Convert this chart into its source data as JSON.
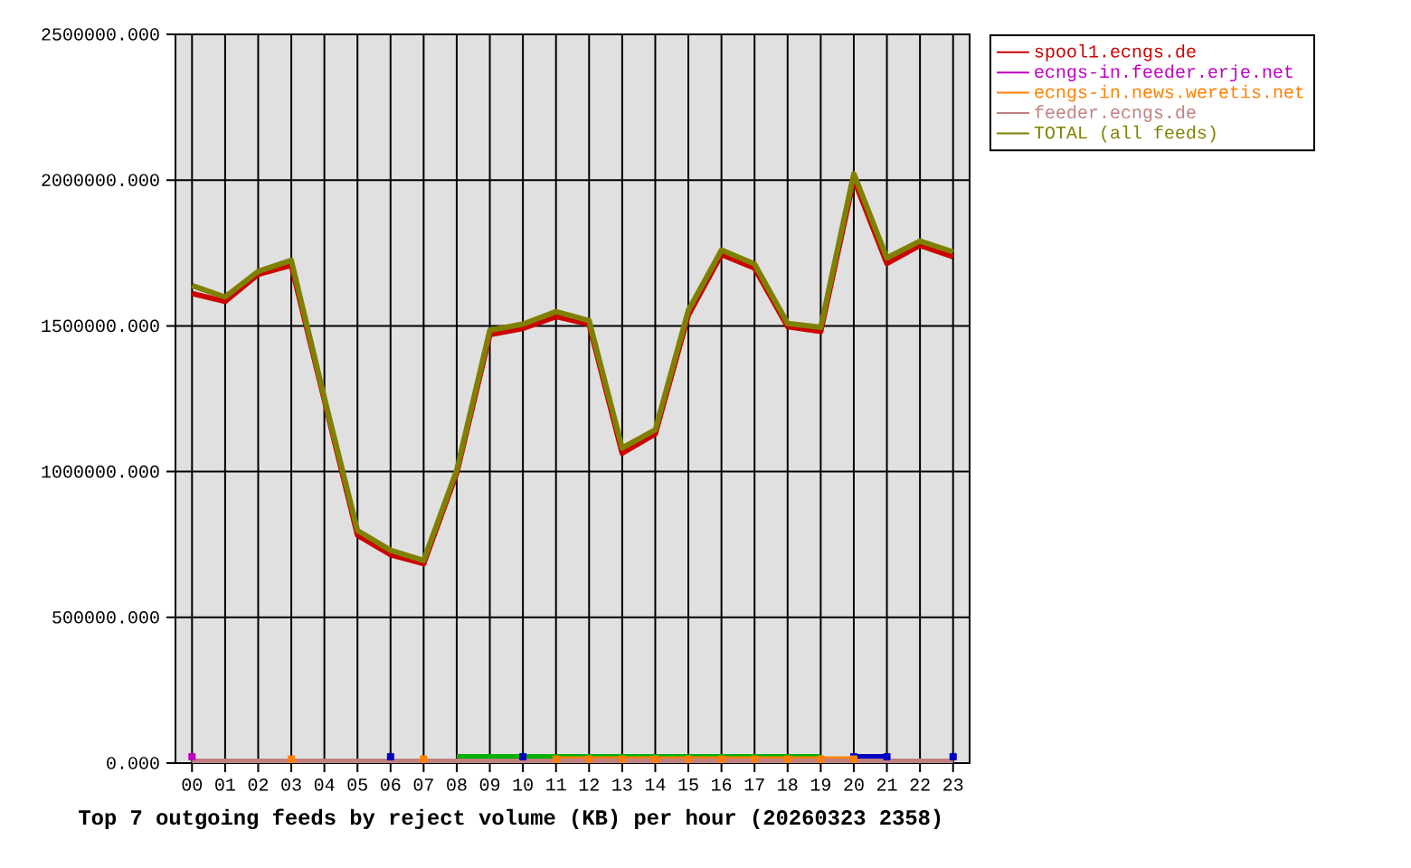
{
  "chart_data": {
    "type": "line",
    "title": "Top 7 outgoing feeds by reject volume (KB) per hour (20260323 2358)",
    "categories": [
      "00",
      "01",
      "02",
      "03",
      "04",
      "05",
      "06",
      "07",
      "08",
      "09",
      "10",
      "11",
      "12",
      "13",
      "14",
      "15",
      "16",
      "17",
      "18",
      "19",
      "20",
      "21",
      "22",
      "23"
    ],
    "ylim": [
      0,
      2500000
    ],
    "yticks": [
      {
        "value": 0,
        "label": "0.000"
      },
      {
        "value": 500000,
        "label": "500000.000"
      },
      {
        "value": 1000000,
        "label": "1000000.000"
      },
      {
        "value": 1500000,
        "label": "1500000.000"
      },
      {
        "value": 2000000,
        "label": "2000000.000"
      },
      {
        "value": 2500000,
        "label": "2500000.000"
      }
    ],
    "grid": true,
    "legend": "right",
    "series": [
      {
        "name": "spool1.ecngs.de",
        "color": "#cc0000",
        "values": [
          1611000,
          1584000,
          1677000,
          1708000,
          1245000,
          782000,
          715000,
          684000,
          995000,
          1470000,
          1491000,
          1532000,
          1506000,
          1063000,
          1129000,
          1537000,
          1745000,
          1698000,
          1497000,
          1481000,
          2003000,
          1714000,
          1776000,
          1737000
        ]
      },
      {
        "color": "#00b000",
        "values": [
          null,
          null,
          null,
          null,
          null,
          null,
          null,
          null,
          22000,
          22000,
          22000,
          22000,
          22000,
          22000,
          22000,
          22000,
          22000,
          22000,
          22000,
          22000,
          null,
          null,
          null,
          null
        ]
      },
      {
        "color": "#0000c0",
        "marker": "square",
        "values": [
          null,
          null,
          null,
          null,
          null,
          null,
          22000,
          null,
          null,
          null,
          22000,
          null,
          null,
          null,
          null,
          null,
          null,
          null,
          null,
          null,
          22000,
          22000,
          null,
          22000
        ]
      },
      {
        "name": "ecngs-in.feeder.erje.net",
        "color": "#c000c0",
        "marker": "square",
        "values": [
          22000,
          null,
          null,
          null,
          null,
          null,
          null,
          null,
          null,
          null,
          null,
          null,
          null,
          null,
          null,
          null,
          null,
          null,
          null,
          null,
          null,
          null,
          null,
          null
        ]
      },
      {
        "name": "ecngs-in.news.weretis.net",
        "color": "#ff8000",
        "marker": "square",
        "values": [
          null,
          null,
          null,
          14000,
          null,
          null,
          null,
          14000,
          null,
          null,
          null,
          14000,
          14000,
          14000,
          14000,
          14000,
          14000,
          14000,
          14000,
          14000,
          14000,
          null,
          null,
          null
        ]
      },
      {
        "name": "feeder.ecngs.de",
        "color": "#c08080",
        "values": [
          6000,
          6000,
          6000,
          6000,
          6000,
          6000,
          6000,
          6000,
          6000,
          6000,
          6000,
          6000,
          6000,
          6000,
          6000,
          6000,
          6000,
          6000,
          6000,
          6000,
          6000,
          6000,
          6000,
          6000
        ]
      },
      {
        "name": "TOTAL (all feeds)",
        "color": "#808000",
        "values": [
          1638000,
          1599000,
          1687000,
          1725000,
          1253000,
          798000,
          730000,
          695000,
          1005000,
          1485000,
          1506000,
          1549000,
          1518000,
          1081000,
          1143000,
          1553000,
          1760000,
          1712000,
          1508000,
          1495000,
          2022000,
          1733000,
          1791000,
          1754000
        ]
      }
    ]
  }
}
